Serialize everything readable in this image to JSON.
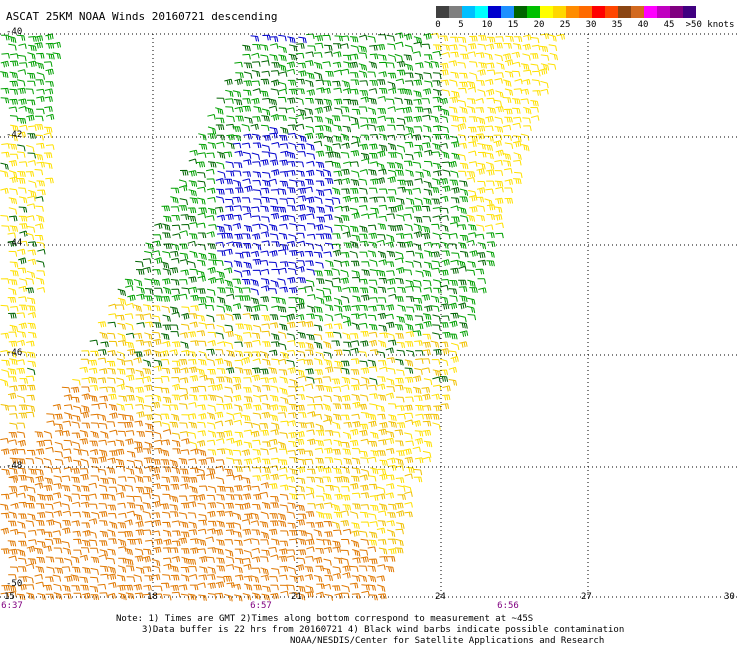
{
  "title": "ASCAT 25KM NOAA Winds 20160721 descending",
  "colorbar": {
    "colors": [
      "#404040",
      "#7f7f7f",
      "#00bfff",
      "#00ffff",
      "#0000cd",
      "#1e90ff",
      "#006400",
      "#00c000",
      "#ffff00",
      "#ffd700",
      "#ff8c00",
      "#ff6a00",
      "#ff0000",
      "#ff4500",
      "#8b4513",
      "#d2691e",
      "#ff00ff",
      "#c000c0",
      "#800080",
      "#400080"
    ],
    "ticks": [
      "0",
      "5",
      "10",
      "15",
      "20",
      "25",
      "30",
      "35",
      "40",
      "45",
      ">50 knots"
    ]
  },
  "lat_labels": [
    "-40",
    "-42",
    "-44",
    "-46",
    "-48",
    "-50"
  ],
  "lon_labels": [
    "15",
    "18",
    "21",
    "24",
    "27",
    "30"
  ],
  "time_labels": [
    "6:37",
    "6:57",
    "6:56"
  ],
  "notes": {
    "line1": "Note: 1) Times are GMT 2)Times along bottom correspond to measurement at ~45S",
    "line2": "3)Data buffer is 22 hrs from 20160721 4) Black wind barbs indicate possible contamination",
    "line3": "NOAA/NESDIS/Center for Satellite Applications and Research"
  },
  "barb_colors": {
    "dark_green": "#006400",
    "green": "#00a000",
    "blue": "#0000cd",
    "yellow": "#ffe000",
    "gold": "#f0c000",
    "orange": "#e07800"
  }
}
